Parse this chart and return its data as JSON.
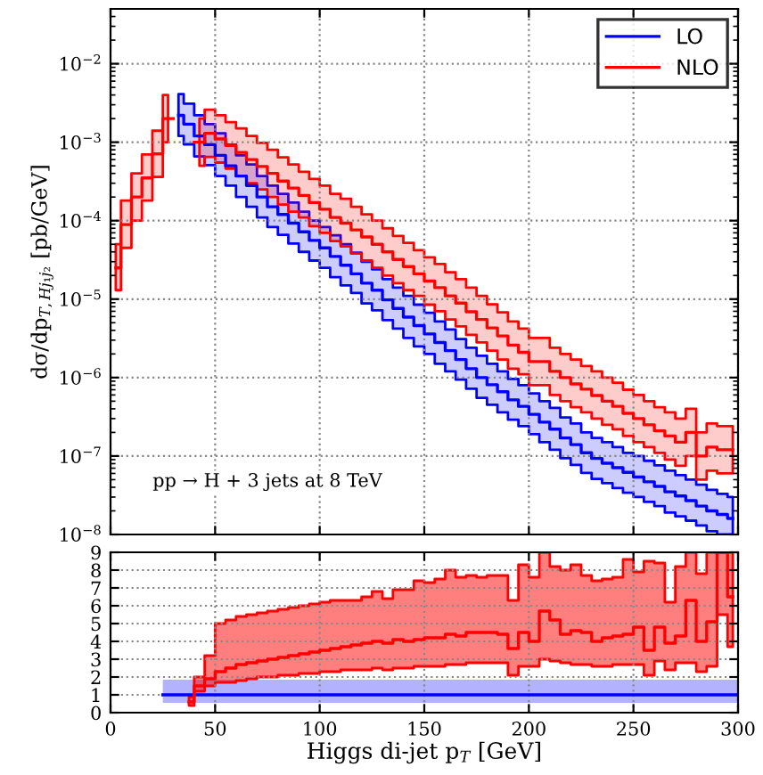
{
  "chart_data": [
    {
      "type": "step",
      "xlim": [
        0,
        300
      ],
      "xticks": [
        0,
        50,
        100,
        150,
        200,
        250,
        300
      ],
      "ylim": [
        1e-08,
        0.05
      ],
      "log": "y",
      "tick_labels": "y",
      "grid": true,
      "legend": "top right",
      "ylabel": "dσ/dp$_{T,Hj₁j₂}$ [pb/GeV]",
      "yticks": [
        {
          "value": 1e-08,
          "label": "10$^{−8}$"
        },
        {
          "value": 1e-07,
          "label": "10$^{−7}$"
        },
        {
          "value": 1e-06,
          "label": "10$^{−6}$"
        },
        {
          "value": 1e-05,
          "label": "10$^{−5}$"
        },
        {
          "value": 0.0001,
          "label": "10$^{−4}$"
        },
        {
          "value": 0.001,
          "label": "10$^{−3}$"
        },
        {
          "value": 0.01,
          "label": "10$^{−2}$"
        }
      ],
      "annotations": [
        "pp → H + 3 jets at 8 TeV"
      ],
      "series": [
        {
          "name": "LO",
          "color": "#0000ff",
          "x": [
            32.5,
            37.5,
            42.5,
            47.5,
            52.5,
            57.5,
            62.5,
            67.5,
            72.5,
            77.5,
            82.5,
            87.5,
            92.5,
            97.5,
            102.5,
            107.5,
            112.5,
            117.5,
            122.5,
            127.5,
            132.5,
            137.5,
            142.5,
            147.5,
            152.5,
            157.5,
            162.5,
            167.5,
            172.5,
            177.5,
            182.5,
            187.5,
            192.5,
            197.5,
            202.5,
            207.5,
            212.5,
            217.5,
            222.5,
            227.5,
            232.5,
            237.5,
            242.5,
            247.5,
            252.5,
            257.5,
            262.5,
            267.5,
            272.5,
            277.5,
            282.5,
            287.5,
            292.5,
            297.5
          ],
          "values": [
            0.0022,
            0.0017,
            0.0012,
            0.00093,
            0.00068,
            0.0005,
            0.00037,
            0.00028,
            0.0002,
            0.00015,
            0.00012,
            9.3e-05,
            7.2e-05,
            5.6e-05,
            4.5e-05,
            3.5e-05,
            2.7e-05,
            2.1e-05,
            1.6e-05,
            1.3e-05,
            9.8e-06,
            7.6e-06,
            5.9e-06,
            4.6e-06,
            3.6e-06,
            2.8e-06,
            2.2e-06,
            1.7e-06,
            1.3e-06,
            1e-06,
            8.1e-07,
            6.6e-07,
            5.2e-07,
            4.3e-07,
            3.4e-07,
            2.7e-07,
            2.2e-07,
            1.7e-07,
            1.4e-07,
            1.1e-07,
            9.3e-08,
            8.1e-08,
            7.1e-08,
            6.2e-08,
            5.4e-08,
            4.7e-08,
            4.1e-08,
            3.5e-08,
            3.1e-08,
            2.7e-08,
            2.3e-08,
            2e-08,
            1.8e-08,
            1.6e-08
          ],
          "upper": [
            0.0041,
            0.0031,
            0.0022,
            0.0017,
            0.0013,
            0.00093,
            0.00068,
            0.00052,
            0.00037,
            0.00028,
            0.00022,
            0.00017,
            0.00013,
            0.0001,
            8.3e-05,
            6.5e-05,
            5e-05,
            3.9e-05,
            3e-05,
            2.4e-05,
            1.8e-05,
            1.4e-05,
            1.1e-05,
            8.5e-06,
            6.7e-06,
            5.2e-06,
            4.1e-06,
            3.1e-06,
            2.4e-06,
            1.9e-06,
            1.5e-06,
            1.2e-06,
            9.6e-07,
            8e-07,
            6.3e-07,
            5e-07,
            4.1e-07,
            3.1e-07,
            2.6e-07,
            2e-07,
            1.7e-07,
            1.5e-07,
            1.3e-07,
            1.1e-07,
            1e-07,
            8.7e-08,
            7.6e-08,
            6.5e-08,
            5.7e-08,
            5e-08,
            4.3e-08,
            3.7e-08,
            3.3e-08,
            3e-08
          ],
          "lower": [
            0.0012,
            0.00094,
            0.00066,
            0.00051,
            0.00037,
            0.00028,
            0.0002,
            0.00015,
            0.00011,
            8.3e-05,
            6.6e-05,
            5.1e-05,
            4e-05,
            3.1e-05,
            2.5e-05,
            1.9e-05,
            1.5e-05,
            1.2e-05,
            8.8e-06,
            7.2e-06,
            5.4e-06,
            4.2e-06,
            3.2e-06,
            2.5e-06,
            2e-06,
            1.5e-06,
            1.2e-06,
            9.4e-07,
            7.2e-07,
            5.5e-07,
            4.5e-07,
            3.6e-07,
            2.9e-07,
            2.4e-07,
            1.9e-07,
            1.5e-07,
            1.2e-07,
            9.4e-08,
            7.7e-08,
            6.1e-08,
            5.1e-08,
            4.5e-08,
            3.9e-08,
            3.4e-08,
            3e-08,
            2.6e-08,
            2.3e-08,
            1.9e-08,
            1.7e-08,
            1.5e-08,
            1.3e-08,
            1.1e-08,
            1e-08,
            1e-08
          ]
        },
        {
          "name": "NLO",
          "color": "#ff0000",
          "x": [
            2.5,
            7.5,
            12.5,
            17.5,
            22.5,
            27.5,
            32.5,
            37.5,
            42.5,
            47.5,
            52.5,
            57.5,
            62.5,
            67.5,
            72.5,
            77.5,
            82.5,
            87.5,
            92.5,
            97.5,
            102.5,
            107.5,
            112.5,
            117.5,
            122.5,
            127.5,
            132.5,
            137.5,
            142.5,
            147.5,
            152.5,
            157.5,
            162.5,
            167.5,
            172.5,
            177.5,
            182.5,
            187.5,
            192.5,
            197.5,
            202.5,
            207.5,
            212.5,
            217.5,
            222.5,
            227.5,
            232.5,
            237.5,
            242.5,
            247.5,
            252.5,
            257.5,
            262.5,
            267.5,
            272.5,
            277.5,
            282.5,
            287.5,
            292.5,
            297.5
          ],
          "values": [
            2.5e-05,
            8.9e-05,
            0.0002,
            0.00035,
            0.00071,
            0.002,
            null,
            null,
            0.001,
            0.0013,
            0.0011,
            0.00091,
            0.00074,
            0.0006,
            0.00049,
            0.0004,
            0.00032,
            0.00026,
            0.00021,
            0.00017,
            0.00014,
            0.00011,
            9.3e-05,
            7.6e-05,
            6.2e-05,
            5e-05,
            4e-05,
            3.2e-05,
            2.6e-05,
            2.1e-05,
            1.7e-05,
            1.4e-05,
            1.1e-05,
            8.9e-06,
            6.9e-06,
            5.5e-06,
            4.3e-06,
            3.4e-06,
            2.6e-06,
            2.1e-06,
            1.6e-06,
            1.6e-06,
            1.2e-06,
            1e-06,
            8.3e-07,
            7.1e-07,
            5.9e-07,
            5e-07,
            4.3e-07,
            3.5e-07,
            3e-07,
            2.5e-07,
            2.1e-07,
            1.8e-07,
            1.5e-07,
            2e-07,
            1e-07,
            1.3e-07,
            1.2e-07,
            1.2e-07
          ],
          "upper": [
            5e-05,
            0.00018,
            0.0004,
            0.0007,
            0.0014,
            0.004,
            null,
            null,
            0.002,
            0.0026,
            0.0022,
            0.0018,
            0.0015,
            0.0012,
            0.00098,
            0.0008,
            0.00064,
            0.00052,
            0.00042,
            0.00034,
            0.00028,
            0.00022,
            0.00019,
            0.00015,
            0.00012,
            0.0001,
            8e-05,
            6.4e-05,
            5.2e-05,
            4.2e-05,
            3.4e-05,
            2.8e-05,
            2.2e-05,
            1.8e-05,
            1.4e-05,
            1.1e-05,
            8.6e-06,
            6.8e-06,
            5.2e-06,
            4.2e-06,
            3.2e-06,
            3.2e-06,
            2.4e-06,
            2e-06,
            1.7e-06,
            1.4e-06,
            1.2e-06,
            1e-06,
            8.6e-07,
            7e-07,
            6e-07,
            5e-07,
            4.2e-07,
            3.6e-07,
            3e-07,
            4e-07,
            2e-07,
            2.6e-07,
            2.4e-07,
            2.4e-07
          ],
          "lower": [
            1.3e-05,
            4.5e-05,
            0.0001,
            0.00018,
            0.00036,
            0.001,
            null,
            null,
            0.0005,
            0.00065,
            0.00055,
            0.00046,
            0.00037,
            0.0003,
            0.00025,
            0.0002,
            0.00016,
            0.00013,
            0.00011,
            8.5e-05,
            7e-05,
            5.5e-05,
            4.7e-05,
            3.8e-05,
            3.1e-05,
            2.5e-05,
            2e-05,
            1.6e-05,
            1.3e-05,
            1.1e-05,
            8.5e-06,
            7e-06,
            5.5e-06,
            4.5e-06,
            3.5e-06,
            2.8e-06,
            2.2e-06,
            1.7e-06,
            1.3e-06,
            1.1e-06,
            8e-07,
            8e-07,
            6e-07,
            5e-07,
            4.2e-07,
            3.6e-07,
            3e-07,
            2.5e-07,
            2.2e-07,
            1.8e-07,
            1.5e-07,
            1.3e-07,
            1.1e-07,
            9e-08,
            7.5e-08,
            1e-07,
            5e-08,
            6.5e-08,
            6e-08,
            6e-08
          ]
        }
      ]
    },
    {
      "type": "step",
      "xlim": [
        0,
        300
      ],
      "xticks": [
        0,
        50,
        100,
        150,
        200,
        250,
        300
      ],
      "ylim": [
        0,
        9
      ],
      "yticks": [
        0,
        1,
        2,
        3,
        4,
        5,
        6,
        7,
        8,
        9
      ],
      "grid": true,
      "xlabel": "Higgs di-jet p$_{T}$ [GeV]",
      "series": [
        {
          "type": "line",
          "color": "#0000ff",
          "x": [
            25,
            300
          ],
          "values": [
            1,
            1
          ],
          "lower": [
            0.55,
            0.55
          ],
          "upper": [
            1.85,
            1.85
          ]
        },
        {
          "color": "#ff0000",
          "x": [
            37.5,
            42.5,
            47.5,
            52.5,
            57.5,
            62.5,
            67.5,
            72.5,
            77.5,
            82.5,
            87.5,
            92.5,
            97.5,
            102.5,
            107.5,
            112.5,
            117.5,
            122.5,
            127.5,
            132.5,
            137.5,
            142.5,
            147.5,
            152.5,
            157.5,
            162.5,
            167.5,
            172.5,
            177.5,
            182.5,
            187.5,
            192.5,
            197.5,
            202.5,
            207.5,
            212.5,
            217.5,
            222.5,
            227.5,
            232.5,
            237.5,
            242.5,
            247.5,
            252.5,
            257.5,
            262.5,
            267.5,
            272.5,
            277.5,
            282.5,
            287.5,
            292.5,
            297.5
          ],
          "values": [
            0.6,
            1.5,
            1.9,
            2.3,
            2.5,
            2.7,
            2.8,
            2.9,
            3.0,
            3.1,
            3.2,
            3.3,
            3.4,
            3.5,
            3.6,
            3.7,
            3.8,
            3.9,
            4.0,
            3.9,
            4.1,
            4.0,
            4.1,
            4.2,
            4.2,
            4.4,
            4.3,
            4.5,
            4.5,
            4.5,
            4.4,
            3.6,
            4.5,
            4.0,
            5.7,
            5.2,
            4.4,
            4.6,
            4.5,
            4.0,
            4.2,
            4.3,
            4.4,
            4.8,
            3.5,
            4.8,
            3.9,
            4.3,
            6.3,
            4.0,
            5.1,
            9.0,
            6.5
          ],
          "upper": [
            0.9,
            2.0,
            3.2,
            5.0,
            5.2,
            5.4,
            5.5,
            5.6,
            5.7,
            5.8,
            5.9,
            6.0,
            6.1,
            6.2,
            6.3,
            6.3,
            6.3,
            6.5,
            6.8,
            6.4,
            6.9,
            6.9,
            7.4,
            7.3,
            7.5,
            8.0,
            7.6,
            7.7,
            7.6,
            7.7,
            7.7,
            6.3,
            8.3,
            7.6,
            9.0,
            8.2,
            8.0,
            8.3,
            7.7,
            7.4,
            7.5,
            7.6,
            8.6,
            7.9,
            8.5,
            8.4,
            6.2,
            8.2,
            9.0,
            7.8,
            9.0,
            9.0,
            9.0
          ],
          "lower": [
            0.4,
            1.2,
            1.5,
            1.7,
            1.7,
            1.8,
            1.9,
            2.0,
            2.0,
            2.1,
            2.1,
            2.2,
            2.2,
            2.3,
            2.3,
            2.4,
            2.4,
            2.4,
            2.5,
            2.4,
            2.5,
            2.5,
            2.6,
            2.6,
            2.6,
            2.7,
            2.7,
            2.8,
            2.8,
            2.8,
            2.8,
            2.1,
            2.6,
            2.6,
            3.0,
            2.9,
            2.8,
            2.7,
            2.7,
            2.6,
            2.6,
            2.7,
            2.7,
            2.7,
            2.1,
            2.9,
            2.4,
            2.8,
            2.8,
            2.3,
            2.6,
            5.5,
            3.7
          ]
        }
      ]
    }
  ]
}
